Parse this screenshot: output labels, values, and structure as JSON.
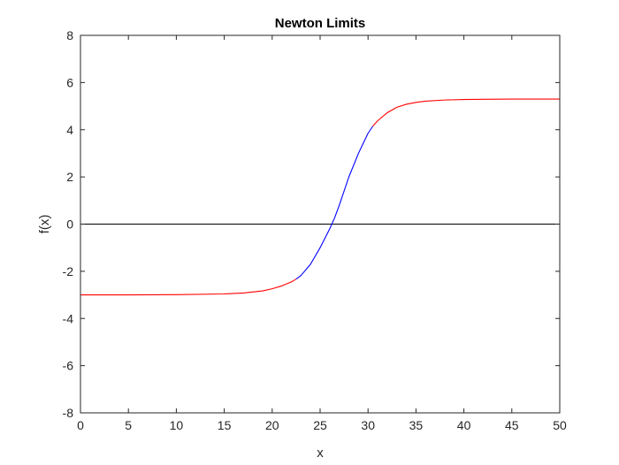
{
  "chart_data": {
    "type": "line",
    "title": "Newton Limits",
    "xlabel": "x",
    "ylabel": "f(x)",
    "xlim": [
      0,
      50
    ],
    "ylim": [
      -8,
      8
    ],
    "xticks": [
      0,
      5,
      10,
      15,
      20,
      25,
      30,
      35,
      40,
      45,
      50
    ],
    "yticks": [
      -8,
      -6,
      -4,
      -2,
      0,
      2,
      4,
      6,
      8
    ],
    "grid": false,
    "legend": "none",
    "series": [
      {
        "color": "#ff0000",
        "x": [
          0,
          5,
          10,
          15,
          17,
          19,
          20,
          21,
          22,
          22.5
        ],
        "y": [
          -3.0,
          -3.0,
          -2.99,
          -2.96,
          -2.92,
          -2.83,
          -2.74,
          -2.62,
          -2.45,
          -2.33
        ]
      },
      {
        "color": "#0000ff",
        "x": [
          22.5,
          23,
          24,
          25,
          26,
          26.5,
          27,
          28,
          29,
          30,
          30.5
        ],
        "y": [
          -2.33,
          -2.18,
          -1.7,
          -1.0,
          -0.2,
          0.25,
          0.8,
          2.0,
          3.0,
          3.85,
          4.15
        ]
      },
      {
        "color": "#ff0000",
        "x": [
          30.5,
          31,
          32,
          33,
          34,
          35,
          36,
          38,
          40,
          42,
          45,
          48,
          50
        ],
        "y": [
          4.15,
          4.38,
          4.72,
          4.95,
          5.08,
          5.16,
          5.21,
          5.26,
          5.28,
          5.29,
          5.3,
          5.3,
          5.3
        ]
      }
    ],
    "reference_lines": [
      {
        "orientation": "horizontal",
        "y": 0,
        "color": "#000000"
      }
    ]
  }
}
